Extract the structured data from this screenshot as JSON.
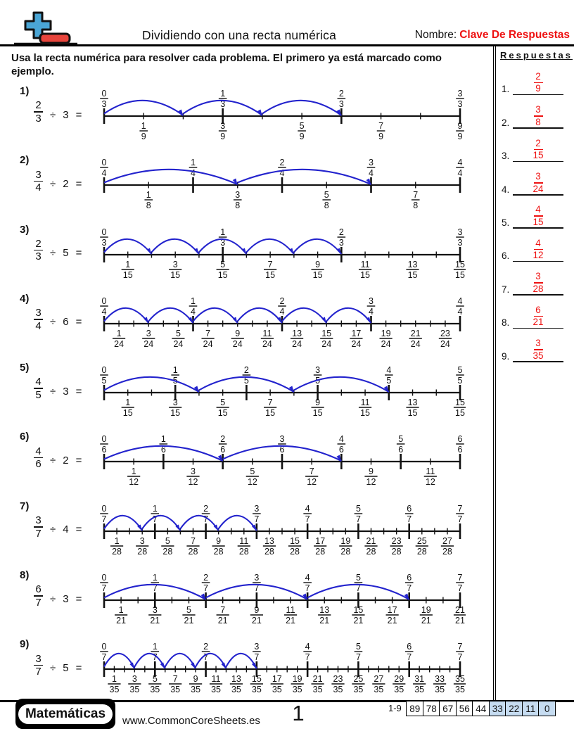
{
  "header": {
    "title": "Dividiendo con una recta numérica",
    "name_label": "Nombre:",
    "name_value": "Clave De Respuestas"
  },
  "instructions": "Usa la recta numérica para resolver cada problema. El primero ya está marcado como ejemplo.",
  "answers": {
    "title": "Respuestas",
    "items": [
      {
        "n": "1.",
        "numerator": "2",
        "denominator": "9"
      },
      {
        "n": "2.",
        "numerator": "3",
        "denominator": "8"
      },
      {
        "n": "3.",
        "numerator": "2",
        "denominator": "15"
      },
      {
        "n": "4.",
        "numerator": "3",
        "denominator": "24"
      },
      {
        "n": "5.",
        "numerator": "4",
        "denominator": "15"
      },
      {
        "n": "6.",
        "numerator": "4",
        "denominator": "12"
      },
      {
        "n": "7.",
        "numerator": "3",
        "denominator": "28"
      },
      {
        "n": "8.",
        "numerator": "6",
        "denominator": "21"
      },
      {
        "n": "9.",
        "numerator": "3",
        "denominator": "35"
      }
    ]
  },
  "problems": [
    {
      "label": "1)",
      "numerator": "2",
      "denominator": "3",
      "divide_sign": "÷",
      "divisor": 3,
      "equals": "=",
      "subdivisions": 9,
      "top_den": "3",
      "top_numerators": [
        "0",
        "1",
        "2",
        "3"
      ],
      "bottom_den": "9",
      "bottom_numerators": [
        "1",
        "3",
        "5",
        "7",
        "9"
      ],
      "jumps": 3,
      "jump_span": 2
    },
    {
      "label": "2)",
      "numerator": "3",
      "denominator": "4",
      "divide_sign": "÷",
      "divisor": 2,
      "equals": "=",
      "subdivisions": 8,
      "top_den": "4",
      "top_numerators": [
        "0",
        "1",
        "2",
        "3",
        "4"
      ],
      "bottom_den": "8",
      "bottom_numerators": [
        "1",
        "3",
        "5",
        "7"
      ],
      "jumps": 2,
      "jump_span": 3
    },
    {
      "label": "3)",
      "numerator": "2",
      "denominator": "3",
      "divide_sign": "÷",
      "divisor": 5,
      "equals": "=",
      "subdivisions": 15,
      "top_den": "3",
      "top_numerators": [
        "0",
        "1",
        "2",
        "3"
      ],
      "bottom_den": "15",
      "bottom_numerators": [
        "1",
        "3",
        "5",
        "7",
        "9",
        "11",
        "13",
        "15"
      ],
      "jumps": 5,
      "jump_span": 2
    },
    {
      "label": "4)",
      "numerator": "3",
      "denominator": "4",
      "divide_sign": "÷",
      "divisor": 6,
      "equals": "=",
      "subdivisions": 24,
      "top_den": "4",
      "top_numerators": [
        "0",
        "1",
        "2",
        "3",
        "4"
      ],
      "bottom_den": "24",
      "bottom_numerators": [
        "1",
        "3",
        "5",
        "7",
        "9",
        "11",
        "13",
        "15",
        "17",
        "19",
        "21",
        "23"
      ],
      "jumps": 6,
      "jump_span": 3
    },
    {
      "label": "5)",
      "numerator": "4",
      "denominator": "5",
      "divide_sign": "÷",
      "divisor": 3,
      "equals": "=",
      "subdivisions": 15,
      "top_den": "5",
      "top_numerators": [
        "0",
        "1",
        "2",
        "3",
        "4",
        "5"
      ],
      "bottom_den": "15",
      "bottom_numerators": [
        "1",
        "3",
        "5",
        "7",
        "9",
        "11",
        "13",
        "15"
      ],
      "jumps": 3,
      "jump_span": 4
    },
    {
      "label": "6)",
      "numerator": "4",
      "denominator": "6",
      "divide_sign": "÷",
      "divisor": 2,
      "equals": "=",
      "subdivisions": 12,
      "top_den": "6",
      "top_numerators": [
        "0",
        "1",
        "2",
        "3",
        "4",
        "5",
        "6"
      ],
      "bottom_den": "12",
      "bottom_numerators": [
        "1",
        "3",
        "5",
        "7",
        "9",
        "11"
      ],
      "jumps": 2,
      "jump_span": 4
    },
    {
      "label": "7)",
      "numerator": "3",
      "denominator": "7",
      "divide_sign": "÷",
      "divisor": 4,
      "equals": "=",
      "subdivisions": 28,
      "top_den": "7",
      "top_numerators": [
        "0",
        "1",
        "2",
        "3",
        "4",
        "5",
        "6",
        "7"
      ],
      "bottom_den": "28",
      "bottom_numerators": [
        "1",
        "3",
        "5",
        "7",
        "9",
        "11",
        "13",
        "15",
        "17",
        "19",
        "21",
        "23",
        "25",
        "27"
      ],
      "jumps": 4,
      "jump_span": 3
    },
    {
      "label": "8)",
      "numerator": "6",
      "denominator": "7",
      "divide_sign": "÷",
      "divisor": 3,
      "equals": "=",
      "subdivisions": 21,
      "top_den": "7",
      "top_numerators": [
        "0",
        "1",
        "2",
        "3",
        "4",
        "5",
        "6",
        "7"
      ],
      "bottom_den": "21",
      "bottom_numerators": [
        "1",
        "3",
        "5",
        "7",
        "9",
        "11",
        "13",
        "15",
        "17",
        "19",
        "21"
      ],
      "jumps": 3,
      "jump_span": 6
    },
    {
      "label": "9)",
      "numerator": "3",
      "denominator": "7",
      "divide_sign": "÷",
      "divisor": 5,
      "equals": "=",
      "subdivisions": 35,
      "top_den": "7",
      "top_numerators": [
        "0",
        "1",
        "2",
        "3",
        "4",
        "5",
        "6",
        "7"
      ],
      "bottom_den": "35",
      "bottom_numerators": [
        "1",
        "3",
        "5",
        "7",
        "9",
        "11",
        "13",
        "15",
        "17",
        "19",
        "21",
        "23",
        "25",
        "27",
        "29",
        "31",
        "33",
        "35"
      ],
      "jumps": 5,
      "jump_span": 3
    }
  ],
  "footer": {
    "brand": "Matemáticas",
    "site": "www.CommonCoreSheets.es",
    "page": "1",
    "score_label": "1-9",
    "score_cells": [
      {
        "value": "89",
        "highlight": false
      },
      {
        "value": "78",
        "highlight": false
      },
      {
        "value": "67",
        "highlight": false
      },
      {
        "value": "56",
        "highlight": false
      },
      {
        "value": "44",
        "highlight": false
      },
      {
        "value": "33",
        "highlight": true
      },
      {
        "value": "22",
        "highlight": true
      },
      {
        "value": "11",
        "highlight": true
      },
      {
        "value": "0",
        "highlight": true
      }
    ]
  },
  "colors": {
    "arc_blue": "#2323cd",
    "answer_red": "#ee1111",
    "score_highlight": "#c6dcf1",
    "logo_blue": "#4aa6d6",
    "logo_red": "#e8453c"
  }
}
